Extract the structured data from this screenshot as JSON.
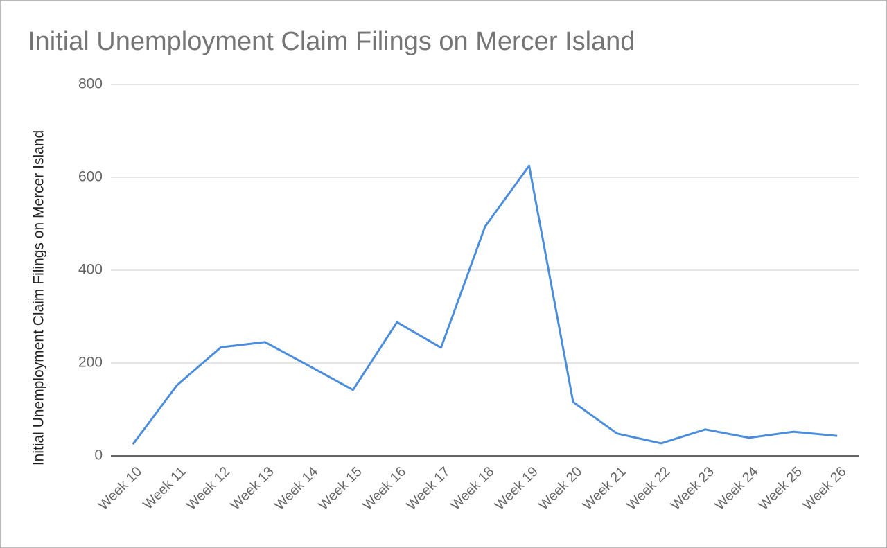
{
  "chart_data": {
    "type": "line",
    "title": "Initial Unemployment Claim Filings on Mercer Island",
    "y_label": "Initial Unemployment Claim Filings on Mercer Island",
    "categories": [
      "Week 10",
      "Week 11",
      "Week 12",
      "Week 13",
      "Week 14",
      "Week 15",
      "Week 16",
      "Week 17",
      "Week 18",
      "Week 19",
      "Week 20",
      "Week 21",
      "Week 22",
      "Week 23",
      "Week 24",
      "Week 25",
      "Week 26"
    ],
    "values": [
      25,
      152,
      234,
      245,
      194,
      142,
      288,
      233,
      494,
      625,
      116,
      48,
      27,
      57,
      39,
      52,
      43
    ],
    "color": "#4a8ddc",
    "ylim": [
      0,
      800
    ],
    "yticks": [
      0,
      200,
      400,
      600,
      800
    ],
    "grid": true
  }
}
